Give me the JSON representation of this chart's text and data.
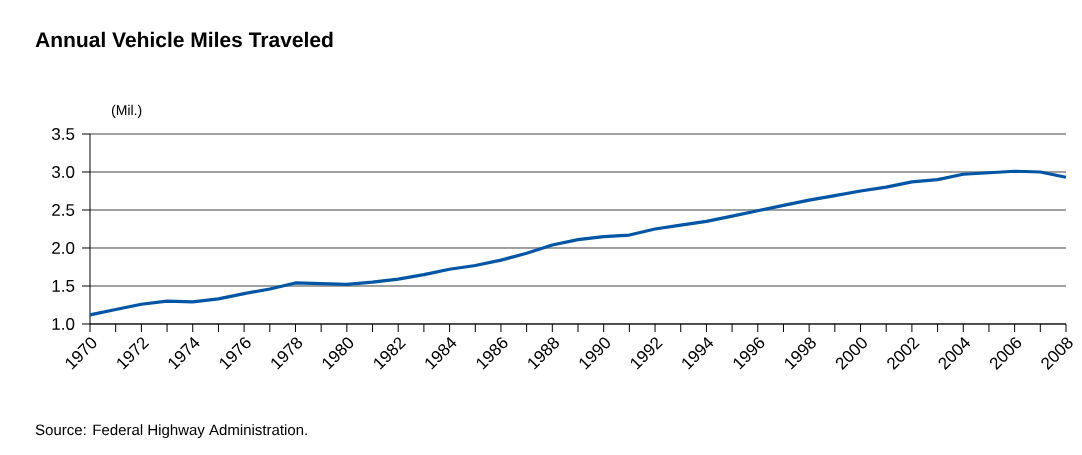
{
  "chart_data": {
    "type": "line",
    "title": "Annual Vehicle Miles Traveled",
    "ylabel": "(Mil.)",
    "annotations": [
      "Source: Federal Highway Administration."
    ],
    "x": [
      1970,
      1971,
      1972,
      1973,
      1974,
      1975,
      1976,
      1977,
      1978,
      1979,
      1980,
      1981,
      1982,
      1983,
      1984,
      1985,
      1986,
      1987,
      1988,
      1989,
      1990,
      1991,
      1992,
      1993,
      1994,
      1995,
      1996,
      1997,
      1998,
      1999,
      2000,
      2001,
      2002,
      2003,
      2004,
      2005,
      2006,
      2007,
      2008
    ],
    "series": [
      {
        "color": "#0055a5",
        "values": [
          1.12,
          1.19,
          1.26,
          1.3,
          1.29,
          1.33,
          1.4,
          1.46,
          1.54,
          1.53,
          1.52,
          1.55,
          1.59,
          1.65,
          1.72,
          1.77,
          1.84,
          1.93,
          2.04,
          2.11,
          2.15,
          2.17,
          2.25,
          2.3,
          2.35,
          2.42,
          2.49,
          2.56,
          2.63,
          2.69,
          2.75,
          2.8,
          2.87,
          2.9,
          2.97,
          2.99,
          3.01,
          3.0,
          2.93
        ]
      }
    ],
    "xlim": [
      1970,
      2008
    ],
    "xticks": [
      1970,
      {
        "value": 1971,
        "label": null
      },
      1972,
      {
        "value": 1973,
        "label": null
      },
      1974,
      {
        "value": 1975,
        "label": null
      },
      1976,
      {
        "value": 1977,
        "label": null
      },
      1978,
      {
        "value": 1979,
        "label": null
      },
      1980,
      {
        "value": 1981,
        "label": null
      },
      1982,
      {
        "value": 1983,
        "label": null
      },
      1984,
      {
        "value": 1985,
        "label": null
      },
      1986,
      {
        "value": 1987,
        "label": null
      },
      1988,
      {
        "value": 1989,
        "label": null
      },
      1990,
      {
        "value": 1991,
        "label": null
      },
      1992,
      {
        "value": 1993,
        "label": null
      },
      1994,
      {
        "value": 1995,
        "label": null
      },
      1996,
      {
        "value": 1997,
        "label": null
      },
      1998,
      {
        "value": 1999,
        "label": null
      },
      2000,
      {
        "value": 2001,
        "label": null
      },
      2002,
      {
        "value": 2003,
        "label": null
      },
      2004,
      {
        "value": 2005,
        "label": null
      },
      2006,
      {
        "value": 2007,
        "label": null
      },
      2008
    ],
    "ylim": [
      1.0,
      3.5
    ],
    "yticks": [
      {
        "value": 1.0,
        "label": "1.0"
      },
      1.5,
      {
        "value": 2.0,
        "label": "2.0"
      },
      2.5,
      {
        "value": 3.0,
        "label": "3.0"
      },
      3.5
    ],
    "grid": "y",
    "marker": "none",
    "line_style": "solid"
  }
}
